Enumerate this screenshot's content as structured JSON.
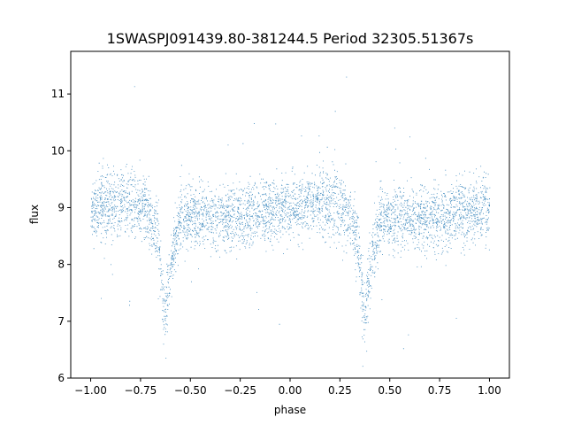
{
  "chart_data": {
    "type": "scatter",
    "title": "1SWASPJ091439.80-381244.5 Period 32305.51367s",
    "xlabel": "phase",
    "ylabel": "flux",
    "xlim": [
      -1.1,
      1.1
    ],
    "ylim": [
      6,
      11.75
    ],
    "xticks": [
      -1.0,
      -0.75,
      -0.5,
      -0.25,
      0.0,
      0.25,
      0.5,
      0.75,
      1.0
    ],
    "xtick_labels": [
      "−1.00",
      "−0.75",
      "−0.50",
      "−0.25",
      "0.00",
      "0.25",
      "0.50",
      "0.75",
      "1.00"
    ],
    "yticks": [
      6,
      7,
      8,
      9,
      10,
      11
    ],
    "ytick_labels": [
      "6",
      "7",
      "8",
      "9",
      "10",
      "11"
    ],
    "marker_color": "#1f77b4",
    "grid": false,
    "legend": false,
    "light_curve_model": {
      "description_points": [
        {
          "phase": -1.0,
          "flux": 9.0
        },
        {
          "phase": -0.85,
          "flux": 9.1
        },
        {
          "phase": -0.72,
          "flux": 9.0
        },
        {
          "phase": -0.66,
          "flux": 8.45
        },
        {
          "phase": -0.63,
          "flux": 7.0
        },
        {
          "phase": -0.6,
          "flux": 8.0
        },
        {
          "phase": -0.55,
          "flux": 8.85
        },
        {
          "phase": -0.3,
          "flux": 8.8
        },
        {
          "phase": 0.0,
          "flux": 9.0
        },
        {
          "phase": 0.15,
          "flux": 9.1
        },
        {
          "phase": 0.28,
          "flux": 9.0
        },
        {
          "phase": 0.34,
          "flux": 8.45
        },
        {
          "phase": 0.37,
          "flux": 7.0
        },
        {
          "phase": 0.4,
          "flux": 8.0
        },
        {
          "phase": 0.45,
          "flux": 8.85
        },
        {
          "phase": 0.7,
          "flux": 8.8
        },
        {
          "phase": 1.0,
          "flux": 9.0
        }
      ],
      "scatter_sigma": 0.28,
      "n_points": 14000
    }
  }
}
